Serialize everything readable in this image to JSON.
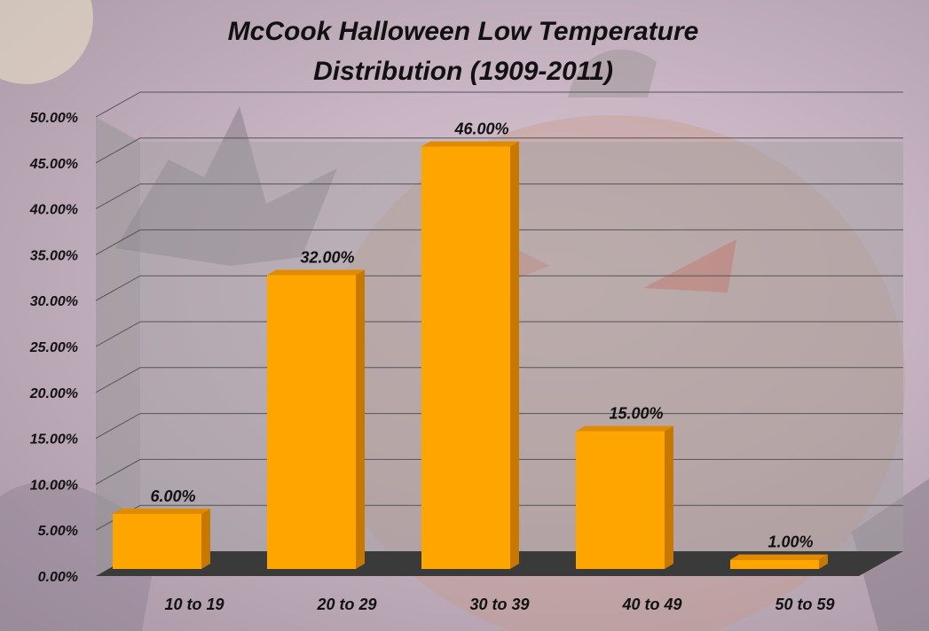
{
  "chart_data": {
    "type": "bar",
    "title": "McCook Halloween Low Temperature Distribution (1909-2011)",
    "title_lines": [
      "McCook Halloween Low Temperature",
      "Distribution (1909-2011)"
    ],
    "categories": [
      "10 to 19",
      "20 to 29",
      "30 to 39",
      "40 to 49",
      "50 to 59"
    ],
    "values": [
      6,
      32,
      46,
      15,
      1
    ],
    "data_labels": [
      "6.00%",
      "32.00%",
      "46.00%",
      "15.00%",
      "1.00%"
    ],
    "y_ticks": [
      "0.00%",
      "5.00%",
      "10.00%",
      "15.00%",
      "20.00%",
      "25.00%",
      "30.00%",
      "35.00%",
      "40.00%",
      "45.00%",
      "50.00%"
    ],
    "ylim": [
      0,
      50
    ],
    "grid": true,
    "legend": "none",
    "style": "3d-column"
  },
  "colors": {
    "bar_front": "#FFA500",
    "bar_side": "#C77800",
    "bar_top": "#E08A00",
    "floor": "#3a3a3a",
    "gridline": "#555555",
    "back_wall": "rgba(160,160,160,0.45)",
    "side_wall": "rgba(150,150,150,0.55)"
  }
}
